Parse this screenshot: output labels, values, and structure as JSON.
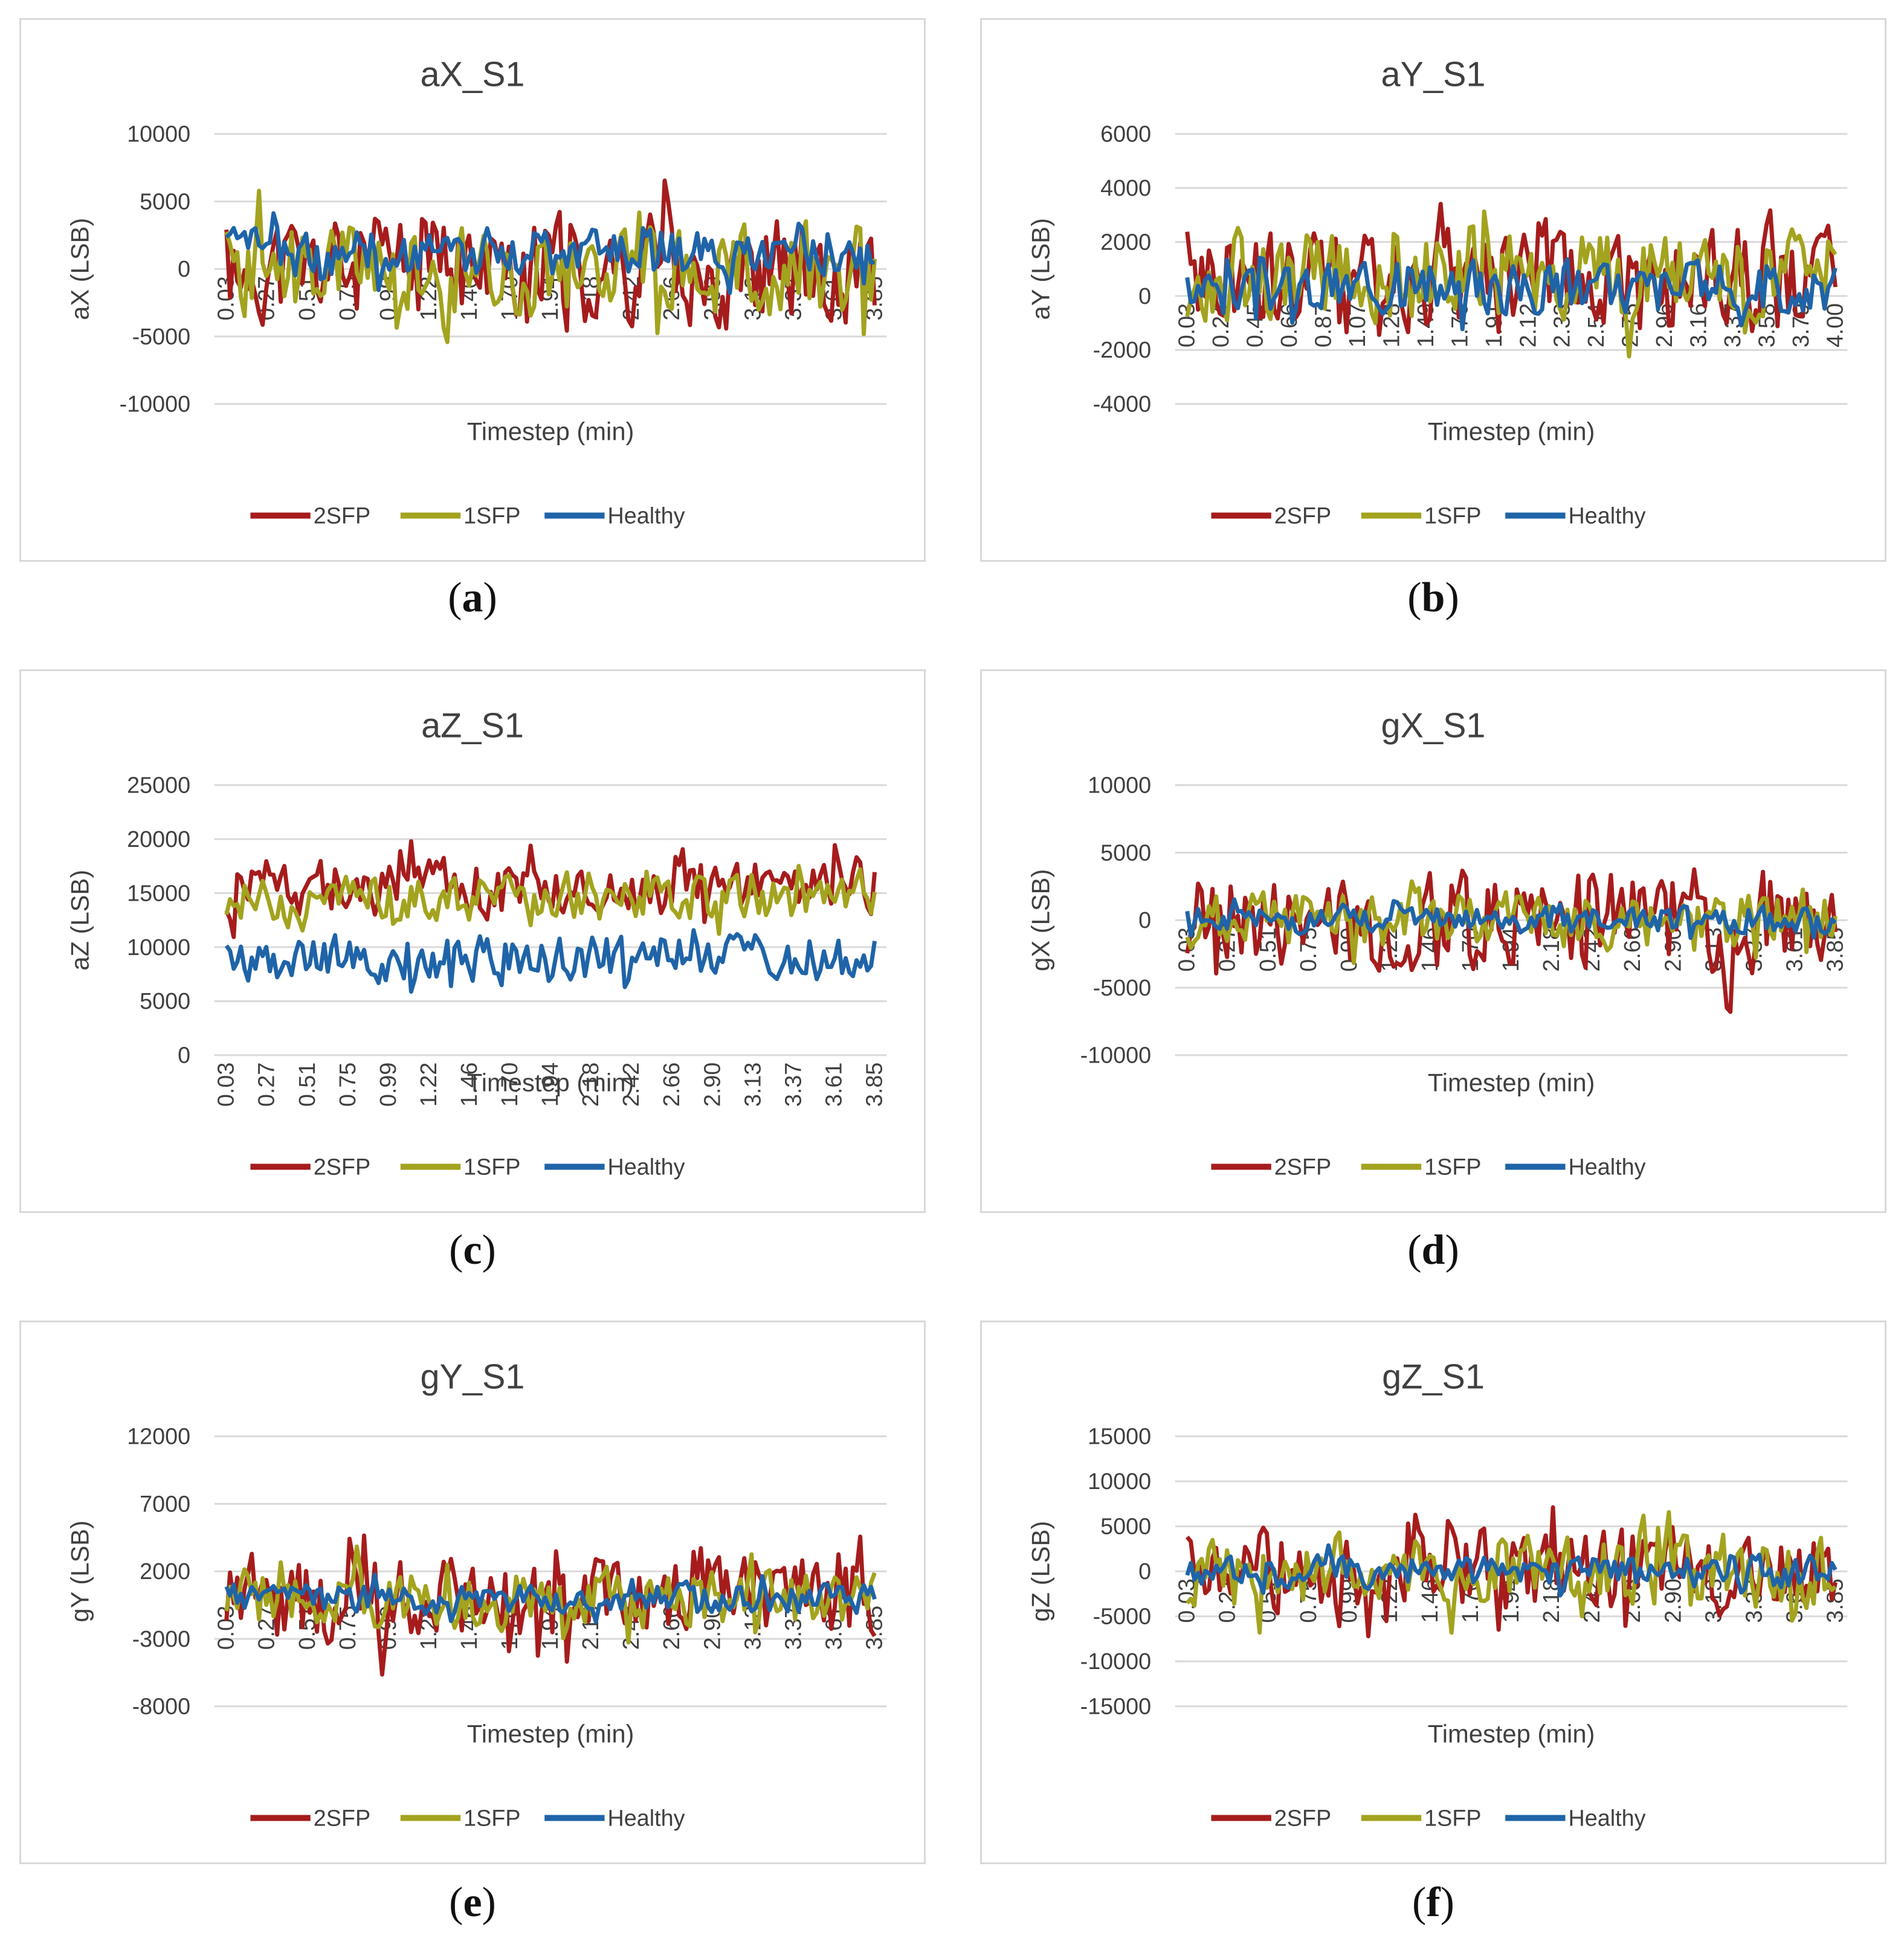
{
  "series_colors": {
    "2SFP": "#a61c1c",
    "1SFP": "#a3a31f",
    "Healthy": "#1f64a8"
  },
  "legend": [
    "2SFP",
    "1SFP",
    "Healthy"
  ],
  "captions": [
    "a",
    "b",
    "c",
    "d",
    "e",
    "f"
  ],
  "chart_data": [
    {
      "type": "line",
      "title": "aX_S1",
      "xlabel": "Timestep (min)",
      "ylabel": "aX (LSB)",
      "yticks": [
        -10000,
        -5000,
        0,
        5000,
        10000
      ],
      "ylim": [
        -10000,
        10000
      ],
      "xticks": [
        "0.03",
        "0.27",
        "0.51",
        "0.75",
        "0.99",
        "1.22",
        "1.46",
        "1.70",
        "1.94",
        "2.18",
        "2.42",
        "2.66",
        "2.90",
        "3.13",
        "3.37",
        "3.61",
        "3.85"
      ],
      "xlim": [
        0.03,
        4.0
      ],
      "grid": true,
      "legend": "bottom",
      "series": [
        {
          "name": "2SFP",
          "base": 0,
          "amp": 4800,
          "seed": 11
        },
        {
          "name": "1SFP",
          "base": 0,
          "amp": 4200,
          "seed": 23
        },
        {
          "name": "Healthy",
          "base": 1200,
          "amp": 2200,
          "seed": 37
        }
      ]
    },
    {
      "type": "line",
      "title": "aY_S1",
      "xlabel": "Timestep (min)",
      "ylabel": "aY (LSB)",
      "yticks": [
        -4000,
        -2000,
        0,
        2000,
        4000,
        6000
      ],
      "ylim": [
        -4000,
        6000
      ],
      "xticks": [
        "0.03",
        "0.24",
        "0.45",
        "0.66",
        "0.87",
        "1.07",
        "1.28",
        "1.49",
        "1.70",
        "1.91",
        "2.12",
        "2.33",
        "2.54",
        "2.75",
        "2.96",
        "3.16",
        "3.37",
        "3.58",
        "3.79",
        "4.00"
      ],
      "xlim": [
        0.03,
        4.0
      ],
      "grid": true,
      "legend": "bottom",
      "series": [
        {
          "name": "2SFP",
          "base": 500,
          "amp": 2600,
          "seed": 41
        },
        {
          "name": "1SFP",
          "base": 700,
          "amp": 2000,
          "seed": 53
        },
        {
          "name": "Healthy",
          "base": 300,
          "amp": 1200,
          "seed": 67
        }
      ]
    },
    {
      "type": "line",
      "title": "aZ_S1",
      "xlabel": "Timestep (min)",
      "ylabel": "aZ (LSB)",
      "yticks": [
        0,
        5000,
        10000,
        15000,
        20000,
        25000
      ],
      "ylim": [
        0,
        25000
      ],
      "xticks": [
        "0.03",
        "0.27",
        "0.51",
        "0.75",
        "0.99",
        "1.22",
        "1.46",
        "1.70",
        "1.94",
        "2.18",
        "2.42",
        "2.66",
        "2.90",
        "3.13",
        "3.37",
        "3.61",
        "3.85"
      ],
      "xlim": [
        0.03,
        4.0
      ],
      "grid": true,
      "legend": "bottom",
      "series": [
        {
          "name": "2SFP",
          "base": 15500,
          "amp": 3200,
          "seed": 71
        },
        {
          "name": "1SFP",
          "base": 14500,
          "amp": 2400,
          "seed": 83
        },
        {
          "name": "Healthy",
          "base": 9000,
          "amp": 2600,
          "seed": 97
        }
      ]
    },
    {
      "type": "line",
      "title": "gX_S1",
      "xlabel": "Timestep (min)",
      "ylabel": "gX (LSB)",
      "yticks": [
        -10000,
        -5000,
        0,
        5000,
        10000
      ],
      "ylim": [
        -10000,
        10000
      ],
      "xticks": [
        "0.03",
        "0.27",
        "0.51",
        "0.75",
        "0.99",
        "1.22",
        "1.46",
        "1.70",
        "1.94",
        "2.18",
        "2.42",
        "2.66",
        "2.90",
        "3.13",
        "3.37",
        "3.61",
        "3.85"
      ],
      "xlim": [
        0.03,
        4.0
      ],
      "grid": true,
      "legend": "bottom",
      "series": [
        {
          "name": "2SFP",
          "base": 0,
          "amp": 4500,
          "seed": 101
        },
        {
          "name": "1SFP",
          "base": 0,
          "amp": 2500,
          "seed": 113
        },
        {
          "name": "Healthy",
          "base": 0,
          "amp": 1200,
          "seed": 127
        }
      ]
    },
    {
      "type": "line",
      "title": "gY_S1",
      "xlabel": "Timestep (min)",
      "ylabel": "gY (LSB)",
      "yticks": [
        -8000,
        -3000,
        2000,
        7000,
        12000
      ],
      "ylim": [
        -8000,
        12000
      ],
      "xticks": [
        "0.03",
        "0.27",
        "0.51",
        "0.75",
        "0.99",
        "1.22",
        "1.46",
        "1.70",
        "1.94",
        "2.18",
        "2.42",
        "2.66",
        "2.90",
        "3.13",
        "3.37",
        "3.61",
        "3.85"
      ],
      "xlim": [
        0.03,
        4.0
      ],
      "grid": true,
      "legend": "bottom",
      "series": [
        {
          "name": "2SFP",
          "base": 0,
          "amp": 3800,
          "seed": 131
        },
        {
          "name": "1SFP",
          "base": 0,
          "amp": 2600,
          "seed": 149
        },
        {
          "name": "Healthy",
          "base": 0,
          "amp": 1300,
          "seed": 157
        }
      ]
    },
    {
      "type": "line",
      "title": "gZ_S1",
      "xlabel": "Timestep (min)",
      "ylabel": "gZ (LSB)",
      "yticks": [
        -15000,
        -10000,
        -5000,
        0,
        5000,
        10000,
        15000
      ],
      "ylim": [
        -15000,
        15000
      ],
      "xticks": [
        "0.03",
        "0.27",
        "0.51",
        "0.75",
        "0.99",
        "1.22",
        "1.46",
        "1.70",
        "1.94",
        "2.18",
        "2.42",
        "2.66",
        "2.90",
        "3.13",
        "3.37",
        "3.61",
        "3.85"
      ],
      "xlim": [
        0.03,
        4.0
      ],
      "grid": true,
      "legend": "bottom",
      "series": [
        {
          "name": "2SFP",
          "base": 0,
          "amp": 5500,
          "seed": 163
        },
        {
          "name": "1SFP",
          "base": 0,
          "amp": 4800,
          "seed": 179
        },
        {
          "name": "Healthy",
          "base": 0,
          "amp": 2200,
          "seed": 191
        }
      ]
    }
  ]
}
